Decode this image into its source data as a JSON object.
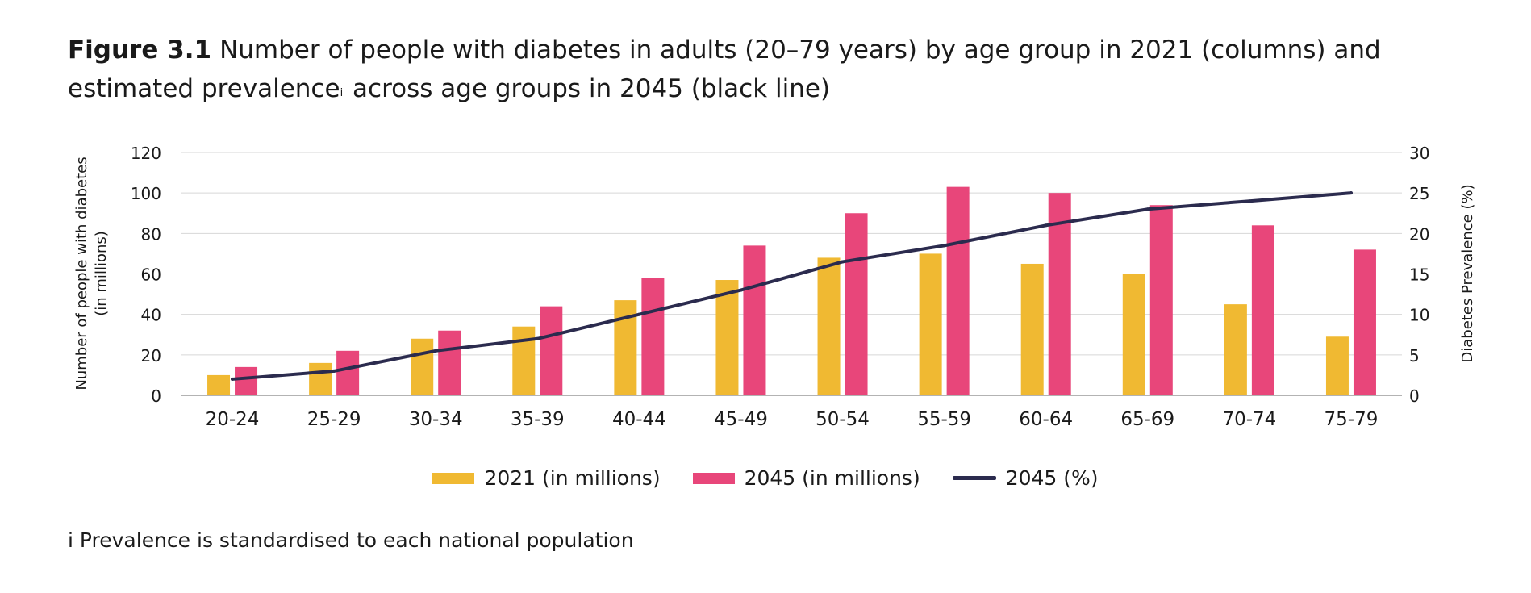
{
  "title": {
    "figure_label": "Figure 3.1",
    "text_before_sup": "Number of people with diabetes in adults (20–79 years) by age group in 2021 (columns) and estimated prevalence",
    "sup": "i",
    "text_after_sup": " across age groups in 2045 (black line)"
  },
  "footnote": "i Prevalence is standardised to each national population",
  "colors": {
    "y2021": "#f0b932",
    "y2045": "#e8467a",
    "line": "#2b2b4e",
    "grid": "#d7d7d7",
    "axis": "#9a9a9a"
  },
  "chart_data": {
    "type": "bar",
    "categories": [
      "20-24",
      "25-29",
      "30-34",
      "35-39",
      "40-44",
      "45-49",
      "50-54",
      "55-59",
      "60-64",
      "65-69",
      "70-74",
      "75-79"
    ],
    "series": [
      {
        "name": "2021 (in millions)",
        "axis": "left",
        "values": [
          10,
          16,
          28,
          34,
          47,
          57,
          68,
          70,
          65,
          60,
          45,
          29
        ]
      },
      {
        "name": "2045 (in millions)",
        "axis": "left",
        "values": [
          14,
          22,
          32,
          44,
          58,
          74,
          90,
          103,
          100,
          94,
          84,
          72
        ]
      },
      {
        "name": "2045 (%)",
        "type": "line",
        "axis": "right",
        "values": [
          2,
          3,
          5.5,
          7,
          10,
          13,
          16.5,
          18.5,
          21,
          23,
          24,
          25
        ]
      }
    ],
    "ylabel": "Number of people with diabetes (in millions)",
    "ylabel_line1": "Number of people with diabetes",
    "ylabel_line2": "(in millions)",
    "y2label": "Diabetes Prevalence (%)",
    "ylim": [
      0,
      120
    ],
    "y2lim": [
      0,
      30
    ],
    "yticks": [
      0,
      20,
      40,
      60,
      80,
      100,
      120
    ],
    "y2ticks": [
      0,
      5,
      10,
      15,
      20,
      25,
      30
    ],
    "grid": true,
    "legend_position": "bottom-center"
  }
}
